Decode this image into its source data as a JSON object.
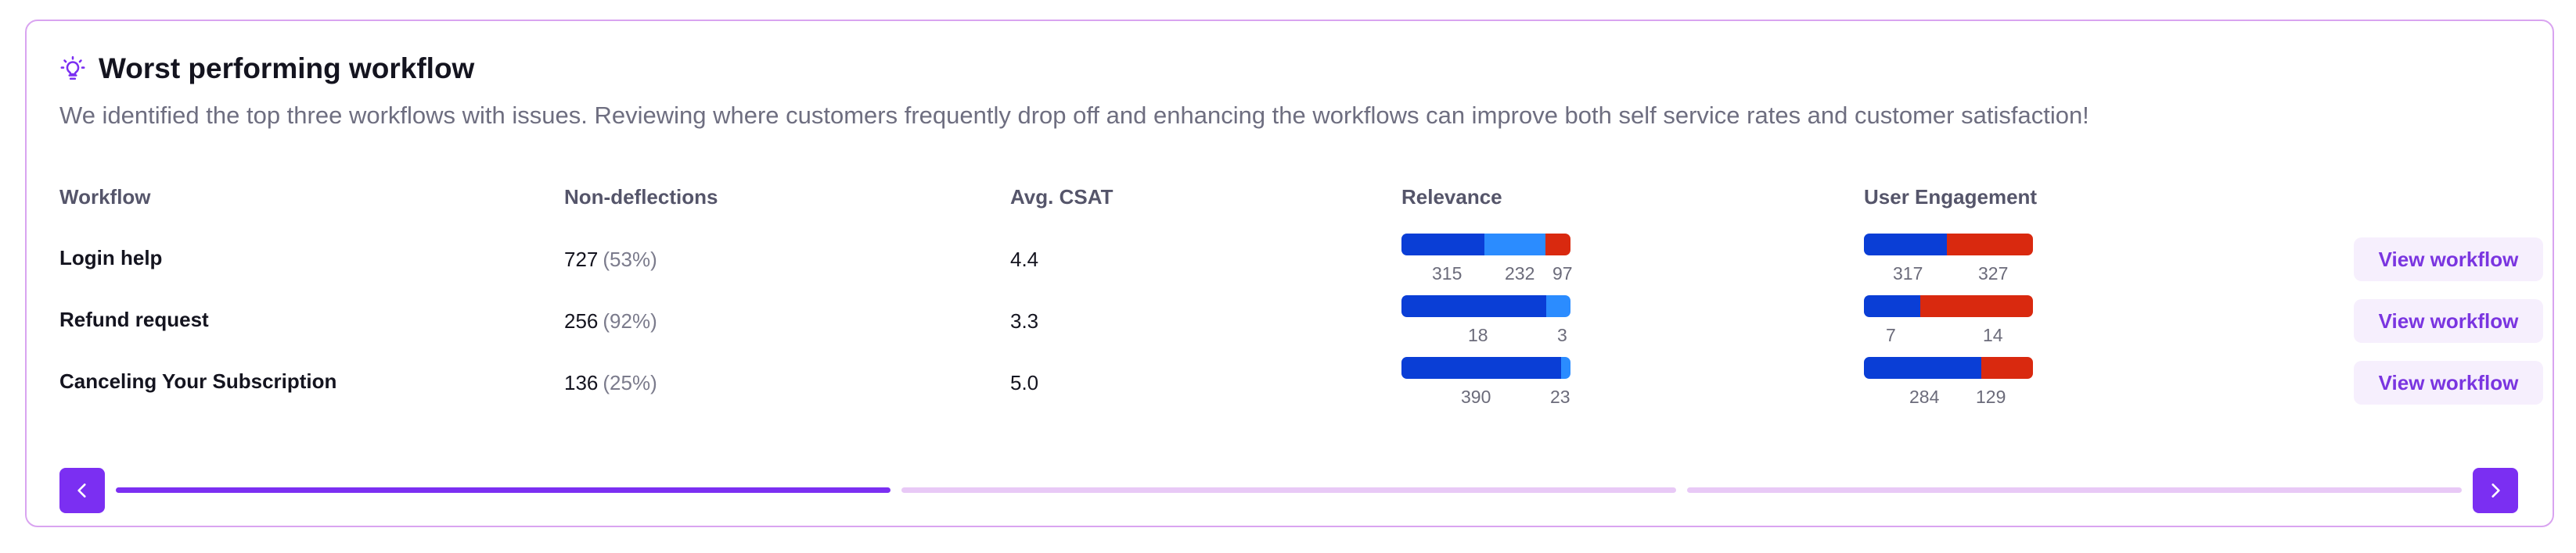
{
  "card": {
    "title": "Worst performing workflow",
    "subtitle": "We identified the top three workflows with issues. Reviewing where customers frequently drop off and enhancing the workflows can improve both self service rates and customer satisfaction!",
    "icon": "lightbulb-icon"
  },
  "columns": {
    "workflow": "Workflow",
    "non_deflections": "Non-deflections",
    "avg_csat": "Avg. CSAT",
    "relevance": "Relevance",
    "user_engagement": "User Engagement"
  },
  "colors": {
    "accent": "#7b2ff2",
    "dark_blue": "#0a3ed6",
    "light_blue": "#2b8cff",
    "red": "#d9290f",
    "border": "#d9a4f0",
    "progress_inactive": "#e8c9f6"
  },
  "rows": [
    {
      "workflow": "Login help",
      "non_deflections": "727",
      "non_deflections_pct": "(53%)",
      "avg_csat": "4.4",
      "relevance": {
        "labels": [
          "315",
          "232",
          "97"
        ],
        "values": [
          315,
          232,
          97
        ]
      },
      "engagement": {
        "labels": [
          "317",
          "327"
        ],
        "values": [
          317,
          327
        ]
      },
      "action": "View workflow"
    },
    {
      "workflow": "Refund request",
      "non_deflections": "256",
      "non_deflections_pct": "(92%)",
      "avg_csat": "3.3",
      "relevance": {
        "labels": [
          "18",
          "3"
        ],
        "values": [
          18,
          3
        ]
      },
      "engagement": {
        "labels": [
          "7",
          "14"
        ],
        "values": [
          7,
          14
        ]
      },
      "action": "View workflow"
    },
    {
      "workflow": "Canceling Your Subscription",
      "non_deflections": "136",
      "non_deflections_pct": "(25%)",
      "avg_csat": "5.0",
      "relevance": {
        "labels": [
          "390",
          "23"
        ],
        "values": [
          390,
          23
        ]
      },
      "engagement": {
        "labels": [
          "284",
          "129"
        ],
        "values": [
          284,
          129
        ]
      },
      "action": "View workflow"
    }
  ],
  "pagination": {
    "prev_icon": "chevron-left-icon",
    "next_icon": "chevron-right-icon",
    "pages": 3,
    "active_page": 1
  }
}
